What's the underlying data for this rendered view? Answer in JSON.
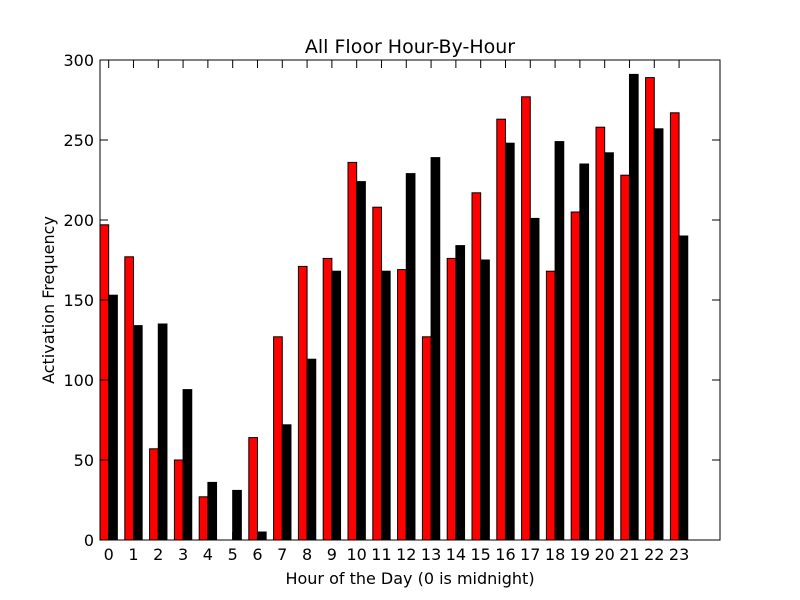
{
  "chart_data": {
    "type": "bar",
    "title": "All Floor Hour-By-Hour",
    "xlabel": "Hour of the Day (0 is midnight)",
    "ylabel": "Activation Frequency",
    "categories": [
      "0",
      "1",
      "2",
      "3",
      "4",
      "5",
      "6",
      "7",
      "8",
      "9",
      "10",
      "11",
      "12",
      "13",
      "14",
      "15",
      "16",
      "17",
      "18",
      "19",
      "20",
      "21",
      "22",
      "23"
    ],
    "series": [
      {
        "color": "#ff0000",
        "values": [
          197,
          177,
          57,
          50,
          27,
          0,
          64,
          127,
          171,
          176,
          236,
          208,
          169,
          127,
          176,
          217,
          263,
          277,
          168,
          205,
          258,
          228,
          289,
          267
        ]
      },
      {
        "color": "#000000",
        "values": [
          153,
          134,
          135,
          94,
          36,
          31,
          5,
          72,
          113,
          168,
          224,
          168,
          229,
          239,
          184,
          175,
          248,
          201,
          249,
          235,
          242,
          291,
          257,
          190
        ]
      }
    ],
    "ylim": [
      0,
      300
    ],
    "xlim": [
      0,
      25
    ],
    "yticks": [
      "0",
      "50",
      "100",
      "150",
      "200",
      "250",
      "300"
    ],
    "grid": false,
    "legend": "none"
  }
}
